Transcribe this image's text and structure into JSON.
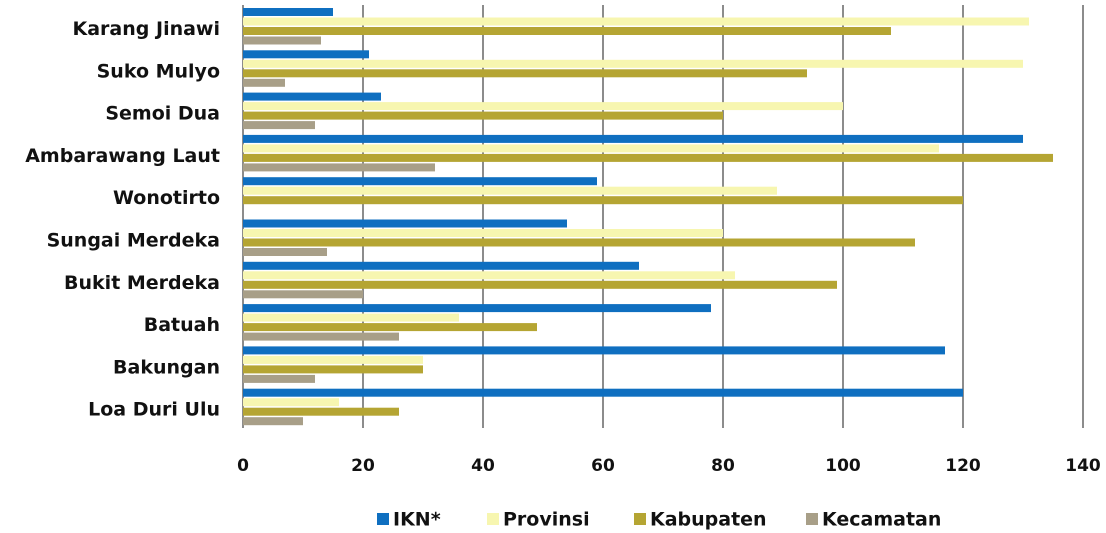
{
  "chart_data": {
    "type": "bar",
    "orientation": "horizontal",
    "categories": [
      "Karang Jinawi",
      "Suko Mulyo",
      "Semoi Dua",
      "Ambarawang Laut",
      "Wonotirto",
      "Sungai Merdeka",
      "Bukit Merdeka",
      "Batuah",
      "Bakungan",
      "Loa Duri Ulu"
    ],
    "series": [
      {
        "name": "IKN*",
        "color": "#0f6fc0",
        "values": [
          15,
          21,
          23,
          130,
          59,
          54,
          66,
          78,
          117,
          120
        ]
      },
      {
        "name": "Provinsi",
        "color": "#f7f6b0",
        "values": [
          131,
          130,
          100,
          116,
          89,
          80,
          82,
          36,
          30,
          16
        ]
      },
      {
        "name": "Kabupaten",
        "color": "#b5a533",
        "values": [
          108,
          94,
          80,
          135,
          120,
          112,
          99,
          49,
          30,
          26
        ]
      },
      {
        "name": "Kecamatan",
        "color": "#a89f88",
        "values": [
          13,
          7,
          12,
          32,
          0,
          14,
          20,
          26,
          12,
          10
        ]
      }
    ],
    "xlim": [
      0,
      140
    ],
    "xticks": [
      0,
      20,
      40,
      60,
      80,
      100,
      120,
      140
    ],
    "grid": true,
    "legend": "bottom"
  }
}
